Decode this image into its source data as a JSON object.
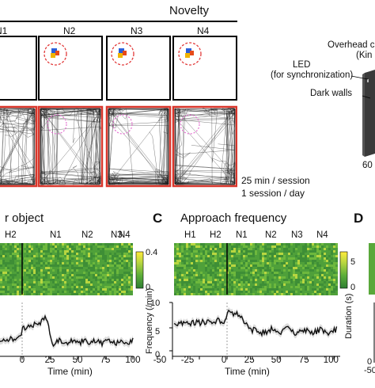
{
  "top": {
    "header": "Novelty",
    "sessions": [
      "N1",
      "N2",
      "N3",
      "N4"
    ],
    "schedule_line1": "25 min / session",
    "schedule_line2": "1 session / day"
  },
  "apparatus": {
    "overhead_label": "Overhead c",
    "overhead_sub": "(Kin",
    "led_label": "LED",
    "led_sub": "(for synchronization)",
    "walls_label": "Dark walls",
    "dimension_label": "60"
  },
  "panel_b": {
    "title": "r object",
    "session_labels": [
      "H2",
      "N1",
      "N2",
      "N3",
      "N4"
    ],
    "colorbar_ticks": [
      "0.4",
      "0"
    ],
    "x_ticks": [
      "0",
      "25",
      "50",
      "75",
      "100"
    ],
    "x_label": "Time (min)"
  },
  "panel_c": {
    "letter": "C",
    "title": "Approach frequency",
    "session_labels": [
      "H1",
      "H2",
      "N1",
      "N2",
      "N3",
      "N4"
    ],
    "colorbar_ticks": [
      "5",
      "0"
    ],
    "x_ticks": [
      "-50",
      "-25",
      "0",
      "25",
      "50",
      "75",
      "100"
    ],
    "x_label": "Time (min)",
    "y_label": "Frequency (/min)",
    "y_ticks": [
      "0",
      "5",
      "10"
    ]
  },
  "panel_d": {
    "letter": "D",
    "y_label": "Duration (s)",
    "y_ticks": [
      "0"
    ],
    "x_ticks": [
      "-50"
    ]
  }
}
